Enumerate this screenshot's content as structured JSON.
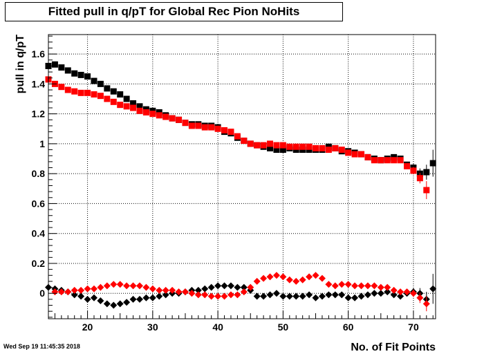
{
  "chart_data": {
    "type": "scatter",
    "title": "Fitted pull in q/pT for Global Rec Pion NoHits",
    "xlabel": "No. of Fit Points",
    "ylabel": "pull in q/pT",
    "xlim": [
      14,
      73.4
    ],
    "ylim": [
      -0.17,
      1.73
    ],
    "grid": true,
    "x_ticks": [
      20,
      30,
      40,
      50,
      60,
      70
    ],
    "y_ticks": [
      0,
      0.2,
      0.4,
      0.6,
      0.8,
      1,
      1.2,
      1.4,
      1.6
    ],
    "x_tick_labels": [
      "20",
      "30",
      "40",
      "50",
      "60",
      "70"
    ],
    "y_tick_labels": [
      "0",
      "0.2",
      "0.4",
      "0.6",
      "0.8",
      "1",
      "1.2",
      "1.4",
      "1.6"
    ],
    "series": [
      {
        "marker": "square",
        "color": "#000000",
        "x": [
          14,
          15,
          16,
          17,
          18,
          19,
          20,
          21,
          22,
          23,
          24,
          25,
          26,
          27,
          28,
          29,
          30,
          31,
          32,
          33,
          34,
          35,
          36,
          37,
          38,
          39,
          40,
          41,
          42,
          43,
          44,
          45,
          46,
          47,
          48,
          49,
          50,
          51,
          52,
          53,
          54,
          55,
          56,
          57,
          58,
          59,
          60,
          61,
          62,
          63,
          64,
          65,
          66,
          67,
          68,
          69,
          70,
          71,
          72,
          73
        ],
        "y": [
          1.52,
          1.53,
          1.51,
          1.49,
          1.47,
          1.46,
          1.45,
          1.42,
          1.4,
          1.37,
          1.35,
          1.33,
          1.3,
          1.27,
          1.25,
          1.23,
          1.22,
          1.21,
          1.19,
          1.17,
          1.16,
          1.14,
          1.13,
          1.13,
          1.12,
          1.12,
          1.11,
          1.08,
          1.07,
          1.04,
          1.02,
          1.0,
          0.99,
          0.98,
          0.97,
          0.96,
          0.96,
          0.97,
          0.96,
          0.96,
          0.96,
          0.96,
          0.96,
          0.98,
          0.97,
          0.95,
          0.95,
          0.94,
          0.93,
          0.91,
          0.9,
          0.89,
          0.9,
          0.91,
          0.9,
          0.86,
          0.84,
          0.8,
          0.81,
          0.87
        ],
        "yerr": [
          0.008,
          0.008,
          0.008,
          0.008,
          0.008,
          0.008,
          0.008,
          0.008,
          0.008,
          0.008,
          0.008,
          0.008,
          0.008,
          0.008,
          0.008,
          0.008,
          0.008,
          0.008,
          0.008,
          0.008,
          0.008,
          0.008,
          0.008,
          0.008,
          0.008,
          0.008,
          0.008,
          0.008,
          0.008,
          0.008,
          0.008,
          0.008,
          0.008,
          0.008,
          0.008,
          0.008,
          0.008,
          0.008,
          0.008,
          0.008,
          0.008,
          0.008,
          0.008,
          0.008,
          0.008,
          0.008,
          0.008,
          0.008,
          0.01,
          0.01,
          0.01,
          0.01,
          0.01,
          0.01,
          0.015,
          0.02,
          0.025,
          0.035,
          0.05,
          0.09
        ]
      },
      {
        "marker": "square",
        "color": "#ff0000",
        "x": [
          14,
          15,
          16,
          17,
          18,
          19,
          20,
          21,
          22,
          23,
          24,
          25,
          26,
          27,
          28,
          29,
          30,
          31,
          32,
          33,
          34,
          35,
          36,
          37,
          38,
          39,
          40,
          41,
          42,
          43,
          44,
          45,
          46,
          47,
          48,
          49,
          50,
          51,
          52,
          53,
          54,
          55,
          56,
          57,
          58,
          59,
          60,
          61,
          62,
          63,
          64,
          65,
          66,
          67,
          68,
          69,
          70,
          71,
          72
        ],
        "y": [
          1.43,
          1.4,
          1.38,
          1.36,
          1.35,
          1.34,
          1.34,
          1.33,
          1.32,
          1.3,
          1.28,
          1.26,
          1.25,
          1.24,
          1.22,
          1.21,
          1.2,
          1.19,
          1.18,
          1.17,
          1.16,
          1.14,
          1.12,
          1.12,
          1.11,
          1.11,
          1.1,
          1.09,
          1.08,
          1.05,
          1.02,
          1.0,
          0.99,
          0.99,
          1.0,
          0.99,
          0.99,
          0.98,
          0.98,
          0.98,
          0.98,
          0.97,
          0.97,
          0.96,
          0.97,
          0.96,
          0.94,
          0.93,
          0.93,
          0.91,
          0.89,
          0.89,
          0.89,
          0.89,
          0.89,
          0.85,
          0.82,
          0.77,
          0.69
        ],
        "yerr": [
          0.008,
          0.008,
          0.008,
          0.008,
          0.008,
          0.008,
          0.008,
          0.008,
          0.008,
          0.008,
          0.008,
          0.008,
          0.008,
          0.008,
          0.008,
          0.008,
          0.008,
          0.008,
          0.008,
          0.008,
          0.008,
          0.008,
          0.008,
          0.008,
          0.008,
          0.008,
          0.008,
          0.008,
          0.008,
          0.008,
          0.008,
          0.008,
          0.008,
          0.008,
          0.008,
          0.008,
          0.008,
          0.008,
          0.008,
          0.008,
          0.008,
          0.008,
          0.008,
          0.008,
          0.008,
          0.008,
          0.008,
          0.008,
          0.01,
          0.01,
          0.01,
          0.01,
          0.01,
          0.01,
          0.015,
          0.02,
          0.025,
          0.035,
          0.06
        ]
      },
      {
        "marker": "diamond",
        "color": "#000000",
        "x": [
          14,
          15,
          16,
          17,
          18,
          19,
          20,
          21,
          22,
          23,
          24,
          25,
          26,
          27,
          28,
          29,
          30,
          31,
          32,
          33,
          34,
          35,
          36,
          37,
          38,
          39,
          40,
          41,
          42,
          43,
          44,
          45,
          46,
          47,
          48,
          49,
          50,
          51,
          52,
          53,
          54,
          55,
          56,
          57,
          58,
          59,
          60,
          61,
          62,
          63,
          64,
          65,
          66,
          67,
          68,
          69,
          70,
          71,
          72,
          73
        ],
        "y": [
          0.04,
          0.03,
          0.02,
          0.01,
          -0.01,
          -0.02,
          -0.04,
          -0.03,
          -0.05,
          -0.07,
          -0.08,
          -0.07,
          -0.06,
          -0.04,
          -0.04,
          -0.03,
          -0.03,
          -0.02,
          -0.01,
          0.0,
          0.0,
          0.01,
          0.02,
          0.02,
          0.03,
          0.04,
          0.05,
          0.05,
          0.05,
          0.04,
          0.04,
          0.02,
          -0.02,
          -0.02,
          -0.01,
          0.0,
          -0.02,
          -0.02,
          -0.02,
          -0.02,
          -0.01,
          -0.03,
          -0.02,
          -0.01,
          -0.01,
          -0.01,
          -0.03,
          -0.03,
          -0.02,
          -0.01,
          0.0,
          0.0,
          0.01,
          -0.01,
          -0.02,
          0.0,
          0.01,
          0.0,
          -0.04,
          0.03
        ],
        "yerr": [
          0.008,
          0.008,
          0.008,
          0.008,
          0.008,
          0.008,
          0.008,
          0.008,
          0.008,
          0.008,
          0.008,
          0.008,
          0.008,
          0.008,
          0.008,
          0.008,
          0.008,
          0.008,
          0.008,
          0.008,
          0.008,
          0.008,
          0.008,
          0.008,
          0.008,
          0.008,
          0.008,
          0.008,
          0.008,
          0.008,
          0.008,
          0.008,
          0.008,
          0.008,
          0.008,
          0.008,
          0.008,
          0.008,
          0.008,
          0.008,
          0.008,
          0.008,
          0.008,
          0.008,
          0.008,
          0.008,
          0.008,
          0.008,
          0.01,
          0.01,
          0.01,
          0.01,
          0.01,
          0.01,
          0.015,
          0.02,
          0.025,
          0.035,
          0.05,
          0.1
        ]
      },
      {
        "marker": "diamond",
        "color": "#ff0000",
        "x": [
          15,
          16,
          17,
          18,
          19,
          20,
          21,
          22,
          23,
          24,
          25,
          26,
          27,
          28,
          29,
          30,
          31,
          32,
          33,
          34,
          35,
          36,
          37,
          38,
          39,
          40,
          41,
          42,
          43,
          44,
          45,
          46,
          47,
          48,
          49,
          50,
          51,
          52,
          53,
          54,
          55,
          56,
          57,
          58,
          59,
          60,
          61,
          62,
          63,
          64,
          65,
          66,
          67,
          68,
          69,
          70,
          71,
          72
        ],
        "y": [
          0.01,
          0.01,
          0.01,
          0.02,
          0.02,
          0.03,
          0.03,
          0.04,
          0.05,
          0.06,
          0.06,
          0.05,
          0.05,
          0.05,
          0.04,
          0.03,
          0.02,
          0.02,
          0.02,
          0.01,
          0.01,
          0.0,
          -0.01,
          -0.01,
          -0.02,
          -0.02,
          -0.02,
          -0.01,
          -0.01,
          0.01,
          0.04,
          0.08,
          0.1,
          0.11,
          0.12,
          0.11,
          0.09,
          0.08,
          0.09,
          0.11,
          0.12,
          0.1,
          0.06,
          0.05,
          0.06,
          0.06,
          0.05,
          0.05,
          0.05,
          0.05,
          0.04,
          0.04,
          0.02,
          0.01,
          0.01,
          0.0,
          -0.03,
          -0.07
        ],
        "yerr": [
          0.008,
          0.008,
          0.008,
          0.008,
          0.008,
          0.008,
          0.008,
          0.008,
          0.008,
          0.008,
          0.008,
          0.008,
          0.008,
          0.008,
          0.008,
          0.008,
          0.008,
          0.008,
          0.008,
          0.008,
          0.008,
          0.008,
          0.008,
          0.008,
          0.008,
          0.008,
          0.008,
          0.008,
          0.008,
          0.008,
          0.008,
          0.008,
          0.008,
          0.008,
          0.008,
          0.008,
          0.008,
          0.008,
          0.008,
          0.008,
          0.008,
          0.008,
          0.008,
          0.008,
          0.008,
          0.008,
          0.008,
          0.01,
          0.01,
          0.01,
          0.01,
          0.01,
          0.01,
          0.015,
          0.02,
          0.025,
          0.035,
          0.05
        ]
      }
    ]
  },
  "footer": {
    "datestamp": "Wed Sep 19 11:45:35 2018"
  }
}
